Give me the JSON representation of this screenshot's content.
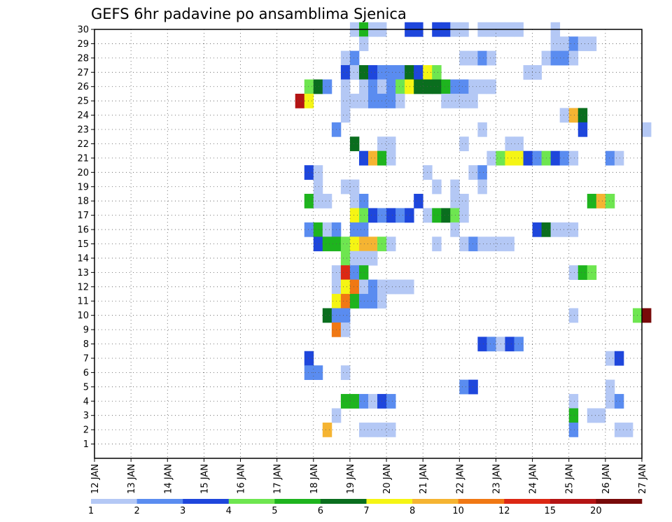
{
  "chart_data": {
    "type": "heatmap",
    "title": "GEFS 6hr padavine po ansamblima Sjenica",
    "xlabel": "",
    "ylabel": "",
    "x_tick_labels": [
      "12 JAN",
      "13 JAN",
      "14 JAN",
      "15 JAN",
      "16 JAN",
      "17 JAN",
      "18 JAN",
      "19 JAN",
      "20 JAN",
      "21 JAN",
      "22 JAN",
      "23 JAN",
      "24 JAN",
      "25 JAN",
      "26 JAN",
      "27 JAN"
    ],
    "y_tick_labels": [
      "1",
      "2",
      "3",
      "4",
      "5",
      "6",
      "7",
      "8",
      "9",
      "10",
      "11",
      "12",
      "13",
      "14",
      "15",
      "16",
      "17",
      "18",
      "19",
      "20",
      "21",
      "22",
      "23",
      "24",
      "25",
      "26",
      "27",
      "28",
      "29",
      "30"
    ],
    "xlim": [
      "12 JAN 00Z",
      "27 JAN 00Z"
    ],
    "ylim": [
      0,
      30
    ],
    "grid": true,
    "legend_placement": "bottom",
    "legend": {
      "labels": [
        "1",
        "2",
        "3",
        "4",
        "5",
        "6",
        "7",
        "8",
        "10",
        "12",
        "15",
        "20"
      ],
      "colors": [
        "#b4c8f5",
        "#5a8cf0",
        "#1e46dc",
        "#6ee650",
        "#1eb41e",
        "#0a6e1e",
        "#f5f514",
        "#f5b432",
        "#f07814",
        "#dc2814",
        "#b41414",
        "#780a0a"
      ]
    },
    "cells": [
      [
        30,
        19.0,
        1
      ],
      [
        30,
        19.25,
        5
      ],
      [
        30,
        19.5,
        1
      ],
      [
        30,
        19.75,
        1
      ],
      [
        30,
        20.5,
        3
      ],
      [
        30,
        20.75,
        3
      ],
      [
        30,
        21.25,
        3
      ],
      [
        30,
        21.5,
        3
      ],
      [
        30,
        21.75,
        1
      ],
      [
        30,
        22.0,
        1
      ],
      [
        30,
        22.5,
        1
      ],
      [
        30,
        22.75,
        1
      ],
      [
        30,
        23.0,
        1
      ],
      [
        30,
        23.25,
        1
      ],
      [
        30,
        23.5,
        1
      ],
      [
        30,
        24.5,
        1
      ],
      [
        29,
        19.25,
        1
      ],
      [
        29,
        24.5,
        1
      ],
      [
        29,
        24.75,
        1
      ],
      [
        29,
        25.0,
        2
      ],
      [
        29,
        25.25,
        1
      ],
      [
        29,
        25.5,
        1
      ],
      [
        28,
        18.75,
        1
      ],
      [
        28,
        19.0,
        2
      ],
      [
        28,
        22.0,
        1
      ],
      [
        28,
        22.25,
        1
      ],
      [
        28,
        22.5,
        2
      ],
      [
        28,
        22.75,
        1
      ],
      [
        28,
        24.25,
        1
      ],
      [
        28,
        24.5,
        2
      ],
      [
        28,
        24.75,
        2
      ],
      [
        28,
        25.0,
        1
      ],
      [
        27,
        18.75,
        3
      ],
      [
        27,
        19.0,
        1
      ],
      [
        27,
        19.25,
        6
      ],
      [
        27,
        19.5,
        3
      ],
      [
        27,
        19.75,
        2
      ],
      [
        27,
        20.0,
        2
      ],
      [
        27,
        20.25,
        2
      ],
      [
        27,
        20.5,
        6
      ],
      [
        27,
        20.75,
        3
      ],
      [
        27,
        21.0,
        7
      ],
      [
        27,
        21.25,
        4
      ],
      [
        27,
        23.75,
        1
      ],
      [
        27,
        24.0,
        1
      ],
      [
        26,
        17.75,
        4
      ],
      [
        26,
        18.0,
        6
      ],
      [
        26,
        18.25,
        2
      ],
      [
        26,
        18.75,
        1
      ],
      [
        26,
        19.25,
        1
      ],
      [
        26,
        19.5,
        2
      ],
      [
        26,
        19.75,
        1
      ],
      [
        26,
        20.0,
        2
      ],
      [
        26,
        20.25,
        4
      ],
      [
        26,
        20.5,
        7
      ],
      [
        26,
        20.75,
        6
      ],
      [
        26,
        21.0,
        6
      ],
      [
        26,
        21.25,
        6
      ],
      [
        26,
        21.5,
        5
      ],
      [
        26,
        21.75,
        2
      ],
      [
        26,
        22.0,
        2
      ],
      [
        26,
        22.25,
        1
      ],
      [
        26,
        22.5,
        1
      ],
      [
        26,
        22.75,
        1
      ],
      [
        25,
        17.5,
        11
      ],
      [
        25,
        17.75,
        7
      ],
      [
        25,
        18.75,
        1
      ],
      [
        25,
        19.0,
        1
      ],
      [
        25,
        19.25,
        1
      ],
      [
        25,
        19.5,
        2
      ],
      [
        25,
        19.75,
        2
      ],
      [
        25,
        20.0,
        2
      ],
      [
        25,
        20.25,
        1
      ],
      [
        25,
        21.5,
        1
      ],
      [
        25,
        21.75,
        1
      ],
      [
        25,
        22.0,
        1
      ],
      [
        25,
        22.25,
        1
      ],
      [
        24,
        18.75,
        1
      ],
      [
        24,
        24.75,
        1
      ],
      [
        24,
        25.0,
        8
      ],
      [
        24,
        25.25,
        6
      ],
      [
        23,
        18.5,
        2
      ],
      [
        23,
        22.5,
        1
      ],
      [
        23,
        25.25,
        3
      ],
      [
        23,
        27.0,
        1
      ],
      [
        22,
        19.0,
        6
      ],
      [
        22,
        19.75,
        1
      ],
      [
        22,
        20.0,
        1
      ],
      [
        22,
        22.0,
        1
      ],
      [
        22,
        23.25,
        1
      ],
      [
        22,
        23.5,
        1
      ],
      [
        21,
        19.25,
        3
      ],
      [
        21,
        19.5,
        8
      ],
      [
        21,
        19.75,
        5
      ],
      [
        21,
        20.0,
        1
      ],
      [
        21,
        22.75,
        1
      ],
      [
        21,
        23.0,
        4
      ],
      [
        21,
        23.25,
        7
      ],
      [
        21,
        23.5,
        7
      ],
      [
        21,
        23.75,
        3
      ],
      [
        21,
        24.0,
        2
      ],
      [
        21,
        24.25,
        4
      ],
      [
        21,
        24.5,
        3
      ],
      [
        21,
        24.75,
        2
      ],
      [
        21,
        25.0,
        1
      ],
      [
        21,
        26.0,
        2
      ],
      [
        21,
        26.25,
        1
      ],
      [
        20,
        17.75,
        3
      ],
      [
        20,
        18.0,
        1
      ],
      [
        20,
        21.0,
        1
      ],
      [
        20,
        22.25,
        1
      ],
      [
        20,
        22.5,
        2
      ],
      [
        19,
        18.0,
        1
      ],
      [
        19,
        18.75,
        1
      ],
      [
        19,
        19.0,
        1
      ],
      [
        19,
        21.25,
        1
      ],
      [
        19,
        21.75,
        1
      ],
      [
        19,
        22.5,
        1
      ],
      [
        18,
        17.75,
        5
      ],
      [
        18,
        18.0,
        1
      ],
      [
        18,
        18.25,
        1
      ],
      [
        18,
        19.0,
        1
      ],
      [
        18,
        19.25,
        2
      ],
      [
        18,
        20.75,
        3
      ],
      [
        18,
        21.75,
        1
      ],
      [
        18,
        22.0,
        1
      ],
      [
        18,
        25.5,
        5
      ],
      [
        18,
        25.75,
        8
      ],
      [
        18,
        26.0,
        4
      ],
      [
        17,
        19.0,
        7
      ],
      [
        17,
        19.25,
        4
      ],
      [
        17,
        19.5,
        3
      ],
      [
        17,
        19.75,
        2
      ],
      [
        17,
        20.0,
        3
      ],
      [
        17,
        20.25,
        2
      ],
      [
        17,
        20.5,
        3
      ],
      [
        17,
        21.0,
        1
      ],
      [
        17,
        21.25,
        5
      ],
      [
        17,
        21.5,
        6
      ],
      [
        17,
        21.75,
        4
      ],
      [
        17,
        22.0,
        1
      ],
      [
        16,
        17.75,
        2
      ],
      [
        16,
        18.0,
        5
      ],
      [
        16,
        18.25,
        1
      ],
      [
        16,
        18.5,
        2
      ],
      [
        16,
        19.0,
        2
      ],
      [
        16,
        19.25,
        2
      ],
      [
        16,
        21.75,
        1
      ],
      [
        16,
        24.0,
        3
      ],
      [
        16,
        24.25,
        6
      ],
      [
        16,
        24.5,
        1
      ],
      [
        16,
        24.75,
        1
      ],
      [
        16,
        25.0,
        1
      ],
      [
        15,
        18.0,
        3
      ],
      [
        15,
        18.25,
        5
      ],
      [
        15,
        18.5,
        5
      ],
      [
        15,
        18.75,
        4
      ],
      [
        15,
        19.0,
        7
      ],
      [
        15,
        19.25,
        8
      ],
      [
        15,
        19.5,
        8
      ],
      [
        15,
        19.75,
        4
      ],
      [
        15,
        20.0,
        1
      ],
      [
        15,
        21.25,
        1
      ],
      [
        15,
        22.0,
        1
      ],
      [
        15,
        22.25,
        2
      ],
      [
        15,
        22.5,
        1
      ],
      [
        15,
        22.75,
        1
      ],
      [
        15,
        23.0,
        1
      ],
      [
        15,
        23.25,
        1
      ],
      [
        14,
        18.75,
        4
      ],
      [
        14,
        19.0,
        1
      ],
      [
        14,
        19.25,
        1
      ],
      [
        14,
        19.5,
        1
      ],
      [
        13,
        18.5,
        1
      ],
      [
        13,
        18.75,
        10
      ],
      [
        13,
        19.0,
        2
      ],
      [
        13,
        19.25,
        5
      ],
      [
        13,
        25.0,
        1
      ],
      [
        13,
        25.25,
        5
      ],
      [
        13,
        25.5,
        4
      ],
      [
        12,
        18.5,
        1
      ],
      [
        12,
        18.75,
        7
      ],
      [
        12,
        19.0,
        9
      ],
      [
        12,
        19.25,
        1
      ],
      [
        12,
        19.5,
        2
      ],
      [
        12,
        19.75,
        1
      ],
      [
        12,
        20.0,
        1
      ],
      [
        12,
        20.25,
        1
      ],
      [
        12,
        20.5,
        1
      ],
      [
        11,
        18.5,
        7
      ],
      [
        11,
        18.75,
        9
      ],
      [
        11,
        19.0,
        5
      ],
      [
        11,
        19.25,
        2
      ],
      [
        11,
        19.5,
        2
      ],
      [
        11,
        19.75,
        1
      ],
      [
        10,
        18.25,
        6
      ],
      [
        10,
        18.5,
        2
      ],
      [
        10,
        18.75,
        2
      ],
      [
        10,
        25.0,
        1
      ],
      [
        10,
        26.75,
        4
      ],
      [
        10,
        27.0,
        12
      ],
      [
        9,
        18.5,
        9
      ],
      [
        9,
        18.75,
        1
      ],
      [
        8,
        22.5,
        3
      ],
      [
        8,
        22.75,
        2
      ],
      [
        8,
        23.0,
        1
      ],
      [
        8,
        23.25,
        3
      ],
      [
        8,
        23.5,
        2
      ],
      [
        7,
        17.75,
        3
      ],
      [
        7,
        26.0,
        1
      ],
      [
        7,
        26.25,
        3
      ],
      [
        6,
        17.75,
        2
      ],
      [
        6,
        18.0,
        2
      ],
      [
        6,
        18.75,
        1
      ],
      [
        5,
        22.0,
        2
      ],
      [
        5,
        22.25,
        3
      ],
      [
        5,
        26.0,
        1
      ],
      [
        4,
        18.75,
        5
      ],
      [
        4,
        19.0,
        5
      ],
      [
        4,
        19.25,
        2
      ],
      [
        4,
        19.5,
        1
      ],
      [
        4,
        19.75,
        3
      ],
      [
        4,
        20.0,
        2
      ],
      [
        4,
        25.0,
        1
      ],
      [
        4,
        26.0,
        1
      ],
      [
        4,
        26.25,
        2
      ],
      [
        3,
        18.5,
        1
      ],
      [
        3,
        25.0,
        5
      ],
      [
        3,
        25.5,
        1
      ],
      [
        3,
        25.75,
        1
      ],
      [
        2,
        18.25,
        8
      ],
      [
        2,
        19.25,
        1
      ],
      [
        2,
        19.5,
        1
      ],
      [
        2,
        19.75,
        1
      ],
      [
        2,
        20.0,
        1
      ],
      [
        2,
        25.0,
        2
      ],
      [
        2,
        26.25,
        1
      ],
      [
        2,
        26.5,
        1
      ]
    ]
  }
}
